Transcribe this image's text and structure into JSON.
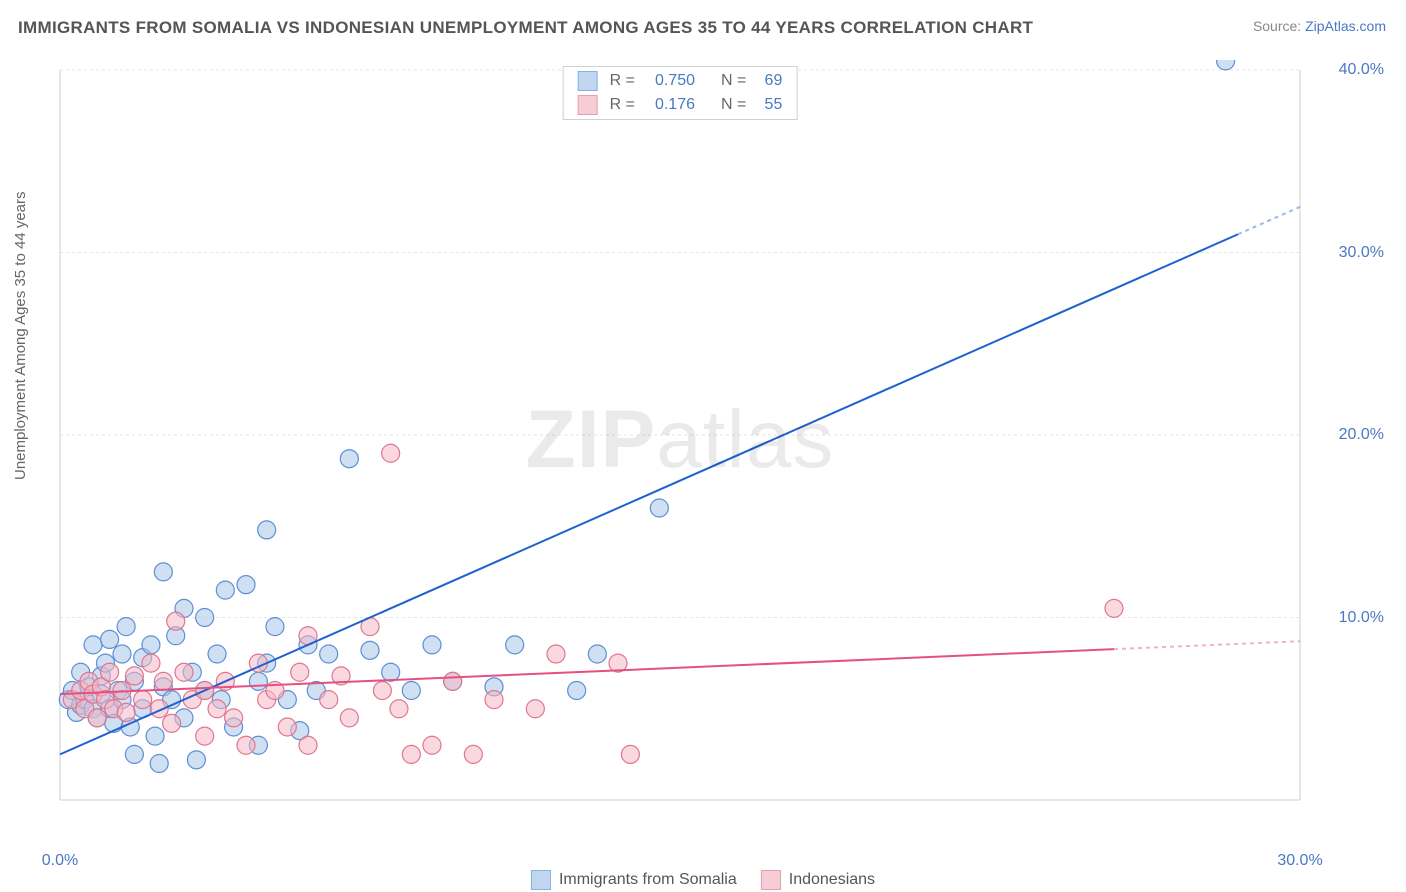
{
  "title": "IMMIGRANTS FROM SOMALIA VS INDONESIAN UNEMPLOYMENT AMONG AGES 35 TO 44 YEARS CORRELATION CHART",
  "source_label": "Source: ",
  "source_link": "ZipAtlas.com",
  "y_axis_label": "Unemployment Among Ages 35 to 44 years",
  "watermark_bold": "ZIP",
  "watermark_light": "atlas",
  "chart": {
    "type": "scatter",
    "xlim": [
      0,
      30
    ],
    "ylim": [
      0,
      40
    ],
    "x_ticks": [
      {
        "value": 0,
        "label": "0.0%"
      },
      {
        "value": 30,
        "label": "30.0%"
      }
    ],
    "y_ticks": [
      {
        "value": 10,
        "label": "10.0%"
      },
      {
        "value": 20,
        "label": "20.0%"
      },
      {
        "value": 30,
        "label": "30.0%"
      },
      {
        "value": 40,
        "label": "40.0%"
      }
    ],
    "grid_color": "#e5e5e5",
    "axis_color": "#cccccc",
    "background_color": "#ffffff",
    "x_label_color": "#4a78c4",
    "y_label_color": "#4a78c4",
    "series": [
      {
        "name": "Immigrants from Somalia",
        "r_value": "0.750",
        "n_value": "69",
        "point_fill": "#a8c6ea",
        "point_fill_opacity": 0.55,
        "point_stroke": "#5b8fd4",
        "point_radius": 9,
        "line_color": "#1e62d0",
        "line_width": 2,
        "line_dash_extrapolate": "4 4",
        "regression": {
          "x1": 0,
          "y1": 2.5,
          "x2": 30,
          "y2": 32.5,
          "solid_until_x": 28.5
        },
        "points": [
          {
            "x": 0.2,
            "y": 5.5
          },
          {
            "x": 0.3,
            "y": 6.0
          },
          {
            "x": 0.4,
            "y": 4.8
          },
          {
            "x": 0.5,
            "y": 5.2
          },
          {
            "x": 0.5,
            "y": 7.0
          },
          {
            "x": 0.6,
            "y": 5.5
          },
          {
            "x": 0.7,
            "y": 6.2
          },
          {
            "x": 0.8,
            "y": 5.0
          },
          {
            "x": 0.8,
            "y": 8.5
          },
          {
            "x": 0.9,
            "y": 4.5
          },
          {
            "x": 1.0,
            "y": 6.8
          },
          {
            "x": 1.0,
            "y": 5.8
          },
          {
            "x": 1.1,
            "y": 7.5
          },
          {
            "x": 1.2,
            "y": 5.0
          },
          {
            "x": 1.2,
            "y": 8.8
          },
          {
            "x": 1.3,
            "y": 4.2
          },
          {
            "x": 1.4,
            "y": 6.0
          },
          {
            "x": 1.5,
            "y": 8.0
          },
          {
            "x": 1.5,
            "y": 5.5
          },
          {
            "x": 1.6,
            "y": 9.5
          },
          {
            "x": 1.7,
            "y": 4.0
          },
          {
            "x": 1.8,
            "y": 6.5
          },
          {
            "x": 1.8,
            "y": 2.5
          },
          {
            "x": 2.0,
            "y": 7.8
          },
          {
            "x": 2.0,
            "y": 5.0
          },
          {
            "x": 2.2,
            "y": 8.5
          },
          {
            "x": 2.3,
            "y": 3.5
          },
          {
            "x": 2.4,
            "y": 2.0
          },
          {
            "x": 2.5,
            "y": 6.2
          },
          {
            "x": 2.5,
            "y": 12.5
          },
          {
            "x": 2.7,
            "y": 5.5
          },
          {
            "x": 2.8,
            "y": 9.0
          },
          {
            "x": 3.0,
            "y": 10.5
          },
          {
            "x": 3.0,
            "y": 4.5
          },
          {
            "x": 3.2,
            "y": 7.0
          },
          {
            "x": 3.3,
            "y": 2.2
          },
          {
            "x": 3.5,
            "y": 10.0
          },
          {
            "x": 3.5,
            "y": 6.0
          },
          {
            "x": 3.8,
            "y": 8.0
          },
          {
            "x": 3.9,
            "y": 5.5
          },
          {
            "x": 4.0,
            "y": 11.5
          },
          {
            "x": 4.2,
            "y": 4.0
          },
          {
            "x": 4.5,
            "y": 11.8
          },
          {
            "x": 4.8,
            "y": 6.5
          },
          {
            "x": 4.8,
            "y": 3.0
          },
          {
            "x": 5.0,
            "y": 7.5
          },
          {
            "x": 5.0,
            "y": 14.8
          },
          {
            "x": 5.2,
            "y": 9.5
          },
          {
            "x": 5.5,
            "y": 5.5
          },
          {
            "x": 5.8,
            "y": 3.8
          },
          {
            "x": 6.0,
            "y": 8.5
          },
          {
            "x": 6.2,
            "y": 6.0
          },
          {
            "x": 6.5,
            "y": 8.0
          },
          {
            "x": 7.0,
            "y": 18.7
          },
          {
            "x": 7.5,
            "y": 8.2
          },
          {
            "x": 8.0,
            "y": 7.0
          },
          {
            "x": 8.5,
            "y": 6.0
          },
          {
            "x": 9.0,
            "y": 8.5
          },
          {
            "x": 9.5,
            "y": 6.5
          },
          {
            "x": 10.5,
            "y": 6.2
          },
          {
            "x": 11.0,
            "y": 8.5
          },
          {
            "x": 12.5,
            "y": 6.0
          },
          {
            "x": 13.0,
            "y": 8.0
          },
          {
            "x": 14.5,
            "y": 16.0
          },
          {
            "x": 28.2,
            "y": 40.5
          }
        ]
      },
      {
        "name": "Indonesians",
        "r_value": "0.176",
        "n_value": "55",
        "point_fill": "#f4b8c4",
        "point_fill_opacity": 0.55,
        "point_stroke": "#e07590",
        "point_radius": 9,
        "line_color": "#e55080",
        "line_width": 2,
        "line_dash_extrapolate": "4 4",
        "regression": {
          "x1": 0,
          "y1": 5.8,
          "x2": 30,
          "y2": 8.7,
          "solid_until_x": 25.5
        },
        "points": [
          {
            "x": 0.3,
            "y": 5.5
          },
          {
            "x": 0.5,
            "y": 6.0
          },
          {
            "x": 0.6,
            "y": 5.0
          },
          {
            "x": 0.7,
            "y": 6.5
          },
          {
            "x": 0.8,
            "y": 5.8
          },
          {
            "x": 0.9,
            "y": 4.5
          },
          {
            "x": 1.0,
            "y": 6.2
          },
          {
            "x": 1.1,
            "y": 5.5
          },
          {
            "x": 1.2,
            "y": 7.0
          },
          {
            "x": 1.3,
            "y": 5.0
          },
          {
            "x": 1.5,
            "y": 6.0
          },
          {
            "x": 1.6,
            "y": 4.8
          },
          {
            "x": 1.8,
            "y": 6.8
          },
          {
            "x": 2.0,
            "y": 5.5
          },
          {
            "x": 2.2,
            "y": 7.5
          },
          {
            "x": 2.4,
            "y": 5.0
          },
          {
            "x": 2.5,
            "y": 6.5
          },
          {
            "x": 2.7,
            "y": 4.2
          },
          {
            "x": 2.8,
            "y": 9.8
          },
          {
            "x": 3.0,
            "y": 7.0
          },
          {
            "x": 3.2,
            "y": 5.5
          },
          {
            "x": 3.5,
            "y": 6.0
          },
          {
            "x": 3.5,
            "y": 3.5
          },
          {
            "x": 3.8,
            "y": 5.0
          },
          {
            "x": 4.0,
            "y": 6.5
          },
          {
            "x": 4.2,
            "y": 4.5
          },
          {
            "x": 4.5,
            "y": 3.0
          },
          {
            "x": 4.8,
            "y": 7.5
          },
          {
            "x": 5.0,
            "y": 5.5
          },
          {
            "x": 5.2,
            "y": 6.0
          },
          {
            "x": 5.5,
            "y": 4.0
          },
          {
            "x": 5.8,
            "y": 7.0
          },
          {
            "x": 6.0,
            "y": 9.0
          },
          {
            "x": 6.0,
            "y": 3.0
          },
          {
            "x": 6.5,
            "y": 5.5
          },
          {
            "x": 6.8,
            "y": 6.8
          },
          {
            "x": 7.0,
            "y": 4.5
          },
          {
            "x": 7.5,
            "y": 9.5
          },
          {
            "x": 7.8,
            "y": 6.0
          },
          {
            "x": 8.0,
            "y": 19.0
          },
          {
            "x": 8.2,
            "y": 5.0
          },
          {
            "x": 8.5,
            "y": 2.5
          },
          {
            "x": 9.0,
            "y": 3.0
          },
          {
            "x": 9.5,
            "y": 6.5
          },
          {
            "x": 10.0,
            "y": 2.5
          },
          {
            "x": 10.5,
            "y": 5.5
          },
          {
            "x": 11.5,
            "y": 5.0
          },
          {
            "x": 12.0,
            "y": 8.0
          },
          {
            "x": 13.5,
            "y": 7.5
          },
          {
            "x": 13.8,
            "y": 2.5
          },
          {
            "x": 25.5,
            "y": 10.5
          }
        ]
      }
    ]
  },
  "legend_r_label": "R =",
  "legend_n_label": "N ="
}
